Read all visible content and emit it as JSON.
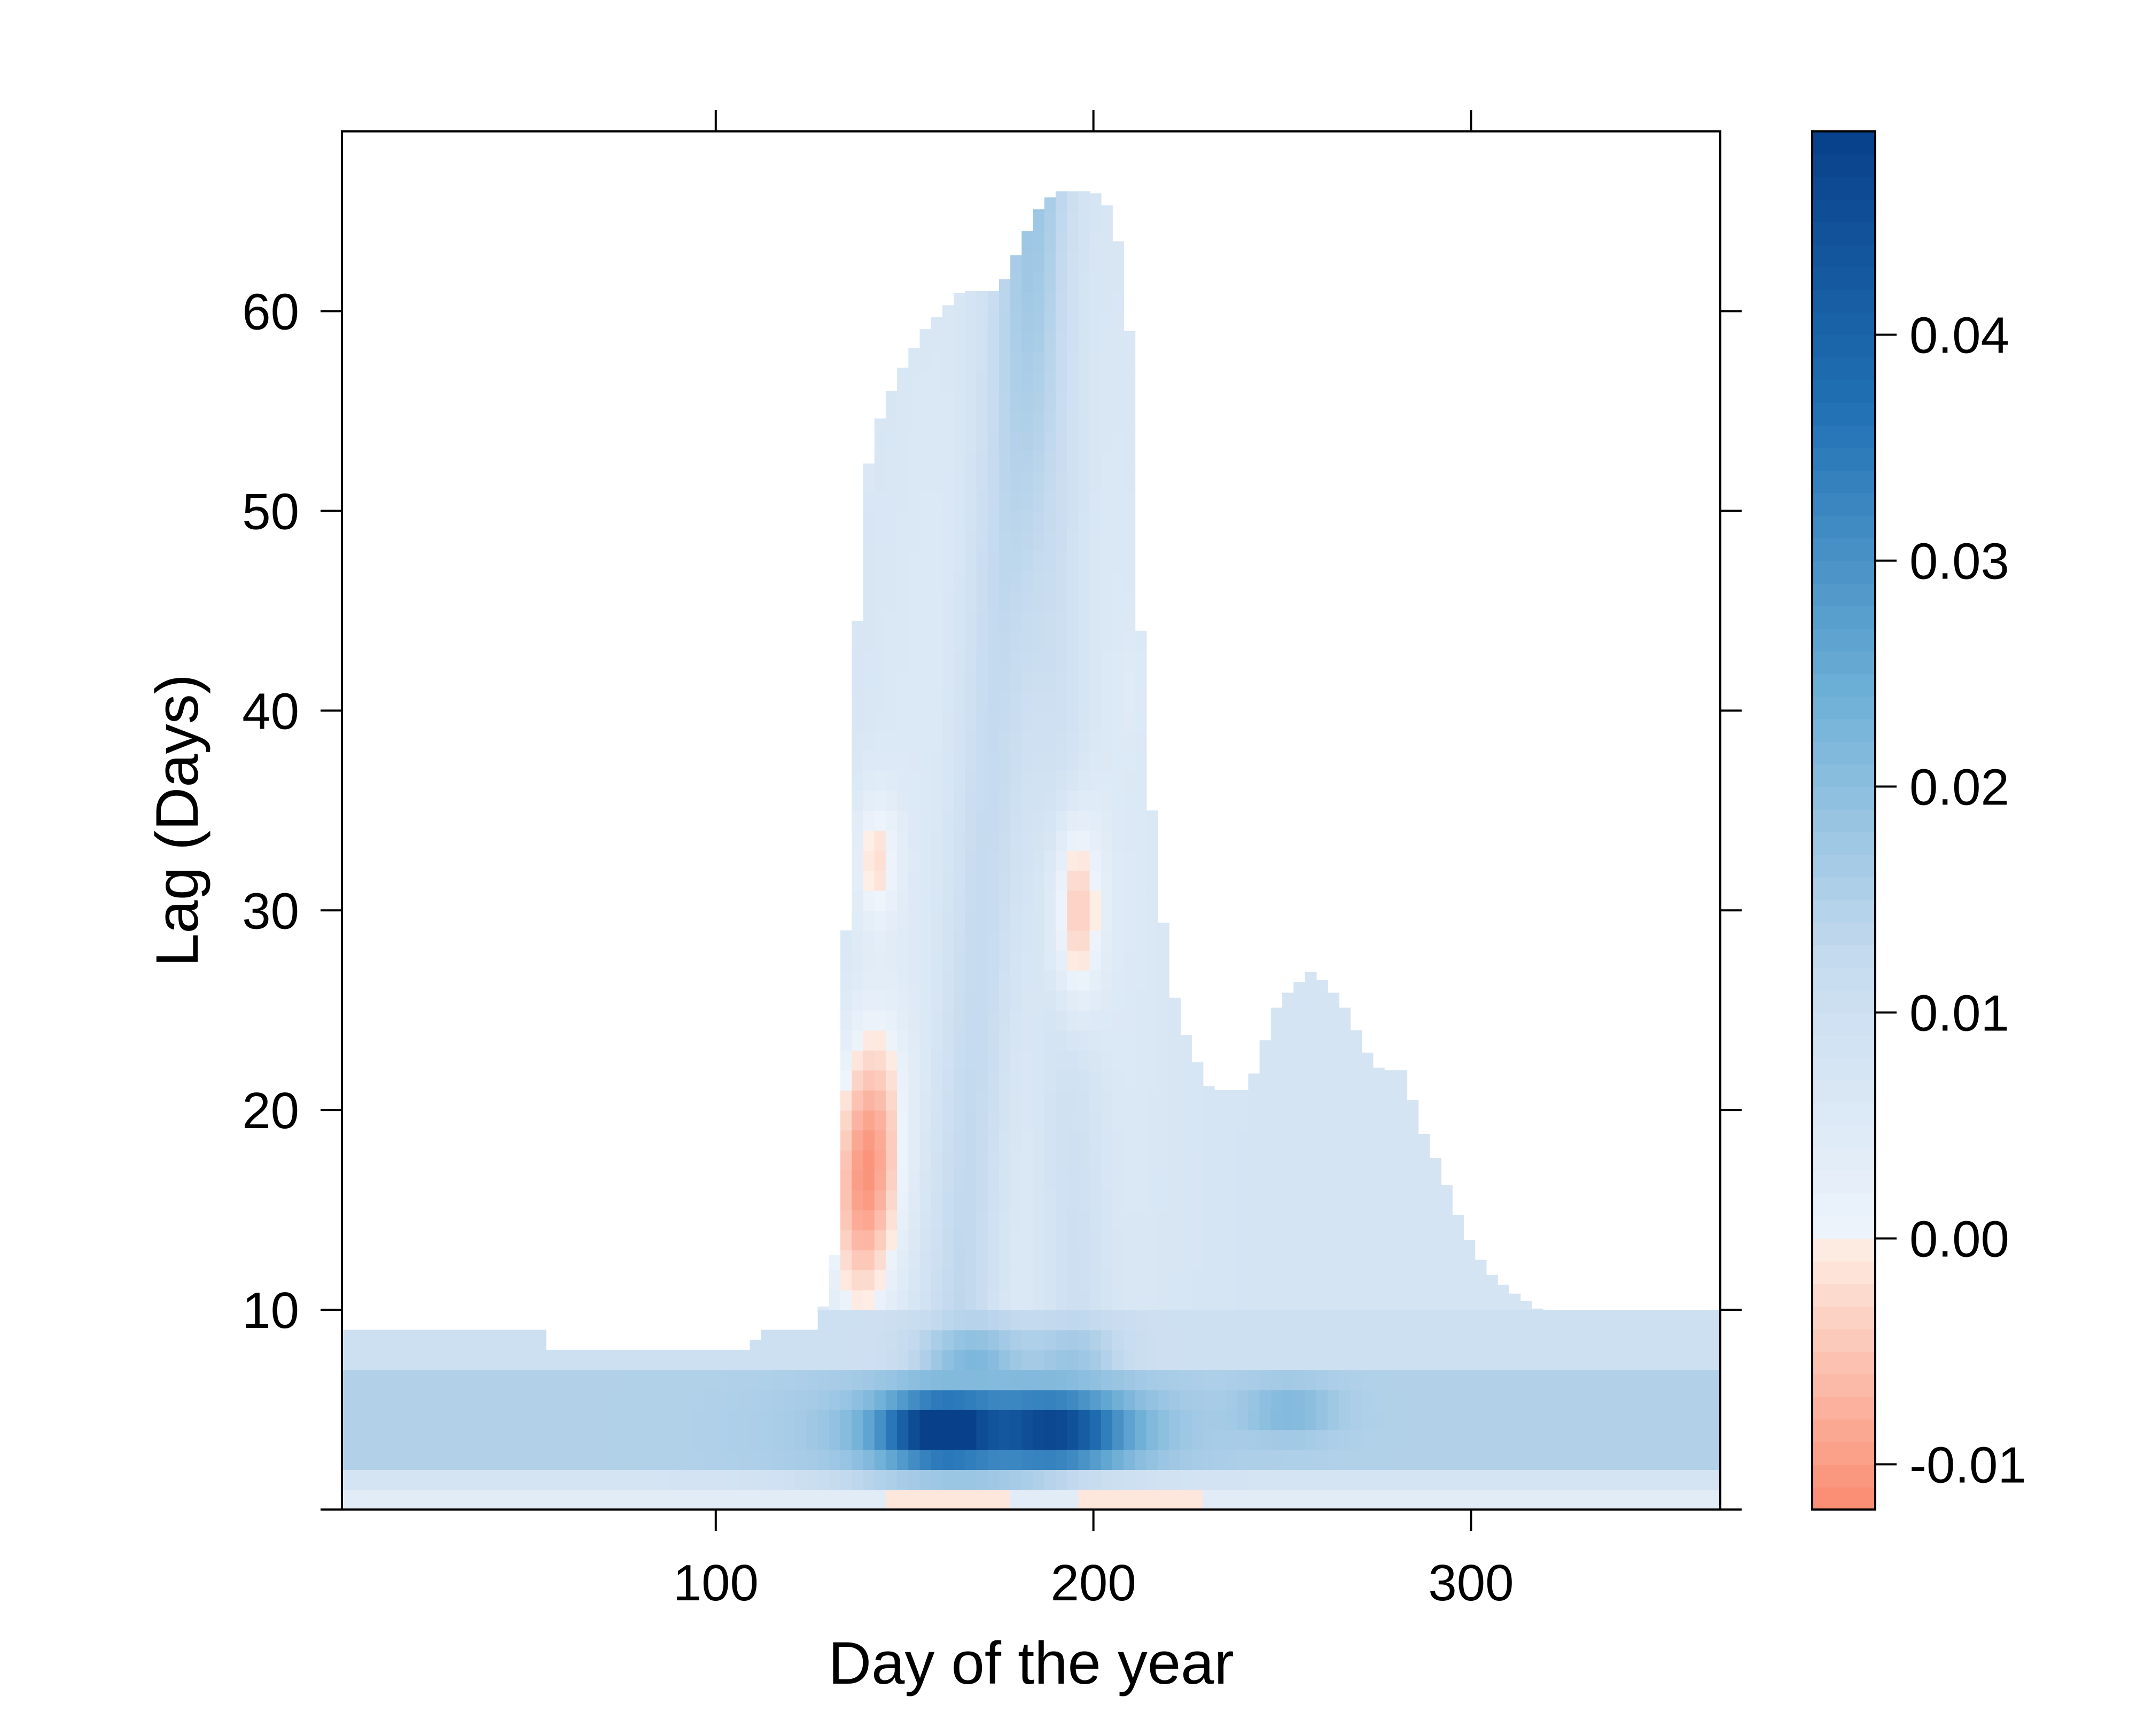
{
  "chart_data": {
    "type": "heatmap",
    "title": "",
    "xlabel": "Day of the year",
    "ylabel": "Lag (Days)",
    "x_range": [
      1,
      366
    ],
    "y_range": [
      0,
      69
    ],
    "x_ticks": [
      100,
      200,
      300
    ],
    "y_ticks": [
      10,
      20,
      30,
      40,
      50,
      60
    ],
    "colorbar": {
      "range": [
        -0.012,
        0.049
      ],
      "ticks": [
        -0.01,
        0.0,
        0.01,
        0.02,
        0.03,
        0.04
      ],
      "tick_labels": [
        "-0.01",
        "0.00",
        "0.01",
        "0.02",
        "0.03",
        "0.04"
      ],
      "negative_colors": [
        "#FA8B70",
        "#FDEFE7"
      ],
      "positive_colors": [
        "#EEF4FB",
        "#C6DBEF",
        "#6BAED6",
        "#2171B5",
        "#08408A"
      ]
    },
    "grid": false,
    "legend": "colorbar-right",
    "support_upper_lag": [
      [
        1,
        9
      ],
      [
        55,
        9
      ],
      [
        56,
        8
      ],
      [
        110,
        8
      ],
      [
        111,
        9
      ],
      [
        127,
        9
      ],
      [
        128,
        10
      ],
      [
        131,
        11
      ],
      [
        133,
        18
      ],
      [
        134,
        25
      ],
      [
        135,
        33
      ],
      [
        136,
        40
      ],
      [
        138,
        46
      ],
      [
        140,
        52
      ],
      [
        144,
        55
      ],
      [
        149,
        57
      ],
      [
        155,
        59
      ],
      [
        160,
        60
      ],
      [
        165,
        61
      ],
      [
        175,
        61
      ],
      [
        180,
        63
      ],
      [
        185,
        65
      ],
      [
        190,
        66
      ],
      [
        200,
        66
      ],
      [
        205,
        65
      ],
      [
        208,
        62
      ],
      [
        210,
        58
      ],
      [
        211,
        52
      ],
      [
        212,
        46
      ],
      [
        213,
        42
      ],
      [
        215,
        36
      ],
      [
        218,
        30
      ],
      [
        222,
        25
      ],
      [
        226,
        23
      ],
      [
        231,
        21
      ],
      [
        240,
        21
      ],
      [
        243,
        22
      ],
      [
        248,
        25
      ],
      [
        252,
        26
      ],
      [
        258,
        27
      ],
      [
        263,
        26
      ],
      [
        267,
        25
      ],
      [
        272,
        23
      ],
      [
        276,
        22
      ],
      [
        282,
        22
      ],
      [
        287,
        19
      ],
      [
        292,
        17
      ],
      [
        298,
        14
      ],
      [
        304,
        12
      ],
      [
        310,
        11
      ],
      [
        318,
        10
      ],
      [
        330,
        10
      ],
      [
        366,
        10
      ]
    ],
    "values": {
      "lag_0_1": 0.004,
      "lag_1_2_base": 0.008,
      "lag_2_7_band": 0.015,
      "lag_7_10_base": 0.01,
      "upper_region_typical": 0.008,
      "strongest_peak": {
        "day": 160,
        "lag": 4,
        "value": 0.048
      },
      "second_peak": {
        "day": 190,
        "lag": 4,
        "value": 0.042
      },
      "secondary_positive": {
        "day": 252,
        "lag": 5,
        "value": 0.022
      },
      "negative_region_1": {
        "day_range": [
          128,
          158
        ],
        "lag_range": [
          11,
          24
        ],
        "min_value": -0.011
      },
      "negative_region_2": {
        "day_range": [
          187,
          205
        ],
        "lag_range": [
          25,
          35
        ],
        "min_value": -0.004
      },
      "negative_region_3": {
        "day_range": [
          134,
          152
        ],
        "lag_range": [
          29,
          36
        ],
        "min_value": -0.002
      },
      "negative_near_zero_lag": {
        "day_ranges": [
          [
            145,
            178
          ],
          [
            195,
            230
          ]
        ],
        "lag": 0,
        "value": -0.001
      }
    }
  }
}
